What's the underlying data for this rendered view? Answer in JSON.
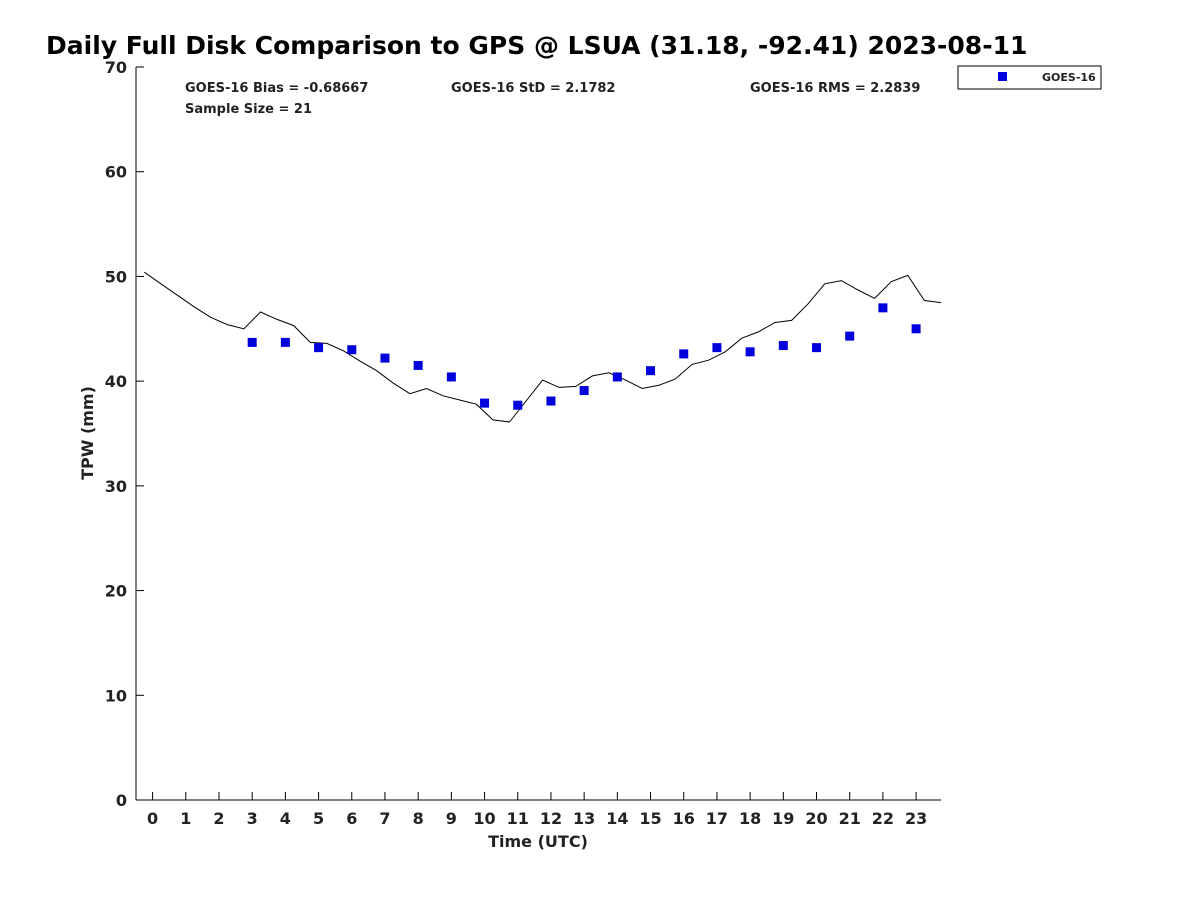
{
  "chart_data": {
    "type": "scatter",
    "title": "Daily Full Disk Comparison to GPS @ LSUA (31.18, -92.41) 2023-08-11",
    "xlabel": "Time (UTC)",
    "ylabel": "TPW (mm)",
    "xlim": [
      -0.5,
      23.75
    ],
    "ylim": [
      0,
      70
    ],
    "x_ticks": [
      "0",
      "1",
      "2",
      "3",
      "4",
      "5",
      "6",
      "7",
      "8",
      "9",
      "10",
      "11",
      "12",
      "13",
      "14",
      "15",
      "16",
      "17",
      "18",
      "19",
      "20",
      "21",
      "22",
      "23"
    ],
    "y_ticks": [
      "0",
      "10",
      "20",
      "30",
      "40",
      "50",
      "60",
      "70"
    ],
    "grid": false,
    "legend": {
      "position": "top-right",
      "entries": [
        "GOES-16"
      ]
    },
    "stats": {
      "bias": "GOES-16 Bias = -0.68667",
      "std": "GOES-16 StD = 2.1782",
      "rms": "GOES-16 RMS = 2.2839",
      "sample": "Sample Size = 21"
    },
    "series": [
      {
        "name": "GOES-16",
        "kind": "scatter",
        "color": "#0000dd",
        "x": [
          3,
          4,
          5,
          6,
          7,
          8,
          9,
          10,
          11,
          12,
          13,
          14,
          15,
          16,
          17,
          18,
          19,
          20,
          21,
          22,
          23
        ],
        "y": [
          43.7,
          43.7,
          43.2,
          43.0,
          42.2,
          41.5,
          40.4,
          37.9,
          37.7,
          38.1,
          39.1,
          40.4,
          41.0,
          42.6,
          43.2,
          42.8,
          43.4,
          43.2,
          44.3,
          47.0,
          45.0
        ]
      },
      {
        "kind": "line",
        "color": "#000000",
        "x": [
          -0.25,
          0.25,
          0.75,
          1.25,
          1.75,
          2.25,
          2.75,
          3.25,
          3.75,
          4.25,
          4.75,
          5.25,
          5.75,
          6.25,
          6.75,
          7.25,
          7.75,
          8.25,
          8.75,
          9.25,
          9.75,
          10.25,
          10.75,
          11.25,
          11.75,
          12.25,
          12.75,
          13.25,
          13.75,
          14.25,
          14.75,
          15.25,
          15.75,
          16.25,
          16.75,
          17.25,
          17.75,
          18.25,
          18.75,
          19.25,
          19.75,
          20.25,
          20.75,
          21.25,
          21.75,
          22.25,
          22.75,
          23.25,
          23.75
        ],
        "y": [
          50.4,
          49.3,
          48.2,
          47.1,
          46.1,
          45.4,
          45.0,
          46.6,
          45.9,
          45.3,
          43.7,
          43.6,
          42.9,
          41.9,
          41.0,
          39.8,
          38.8,
          39.3,
          38.6,
          38.2,
          37.8,
          36.3,
          36.1,
          38.1,
          40.1,
          39.4,
          39.5,
          40.5,
          40.8,
          40.1,
          39.3,
          39.6,
          40.2,
          41.6,
          42.0,
          42.8,
          44.1,
          44.7,
          45.6,
          45.8,
          47.4,
          49.3,
          49.6,
          48.7,
          47.9,
          49.5,
          50.1,
          47.7,
          47.5
        ]
      }
    ]
  }
}
